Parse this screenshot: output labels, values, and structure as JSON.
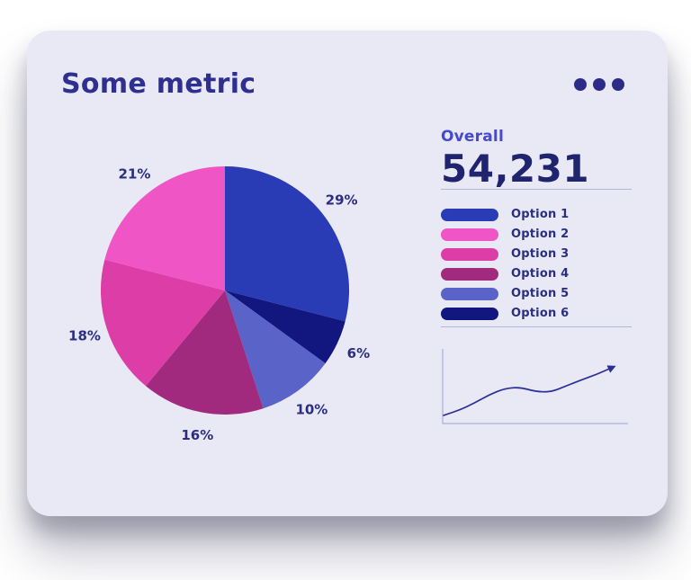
{
  "card": {
    "title": "Some metric"
  },
  "menu": {
    "icon": "ellipsis-icon"
  },
  "overall": {
    "label": "Overall",
    "value": "54,231"
  },
  "legend": {
    "items": [
      {
        "label": "Option 1",
        "color": "#2a3cb5"
      },
      {
        "label": "Option 2",
        "color": "#ef55c4"
      },
      {
        "label": "Option 3",
        "color": "#dd3da6"
      },
      {
        "label": "Option 4",
        "color": "#a12a7e"
      },
      {
        "label": "Option 5",
        "color": "#5a63c8"
      },
      {
        "label": "Option 6",
        "color": "#11177f"
      }
    ]
  },
  "colors": {
    "card_bg": "#e9e9f6",
    "title_navy": "#2e2f8e",
    "value_navy": "#20246f",
    "overall_accent": "#4647d3",
    "divider": "#b4b7dc",
    "spark_axis": "#9aa1d4",
    "spark_line": "#2b2f96"
  },
  "chart_data": [
    {
      "type": "pie",
      "title": "Some metric",
      "labels": [
        "Option 1",
        "Option 2",
        "Option 3",
        "Option 4",
        "Option 5",
        "Option 6"
      ],
      "values": [
        29,
        21,
        18,
        16,
        10,
        6
      ],
      "colors": [
        "#2a3cb5",
        "#ef55c4",
        "#dd3da6",
        "#a12a7e",
        "#5a63c8",
        "#11177f"
      ],
      "unit": "%",
      "start_angle_deg": 0,
      "direction": "clockwise",
      "slice_draw_order": [
        0,
        5,
        4,
        3,
        2,
        1
      ],
      "label_position": "outside",
      "legend_position": "right"
    },
    {
      "type": "line",
      "name": "trend-sparkline",
      "x": [
        0,
        1,
        2,
        3,
        4,
        5,
        6,
        7,
        8,
        9,
        10,
        11
      ],
      "values": [
        6,
        14,
        26,
        40,
        50,
        52,
        45,
        44,
        54,
        64,
        73,
        84
      ],
      "ylim": [
        0,
        100
      ],
      "grid": false,
      "axes": "left-bottom",
      "arrow_end": true,
      "color": "#2b2f96"
    }
  ]
}
